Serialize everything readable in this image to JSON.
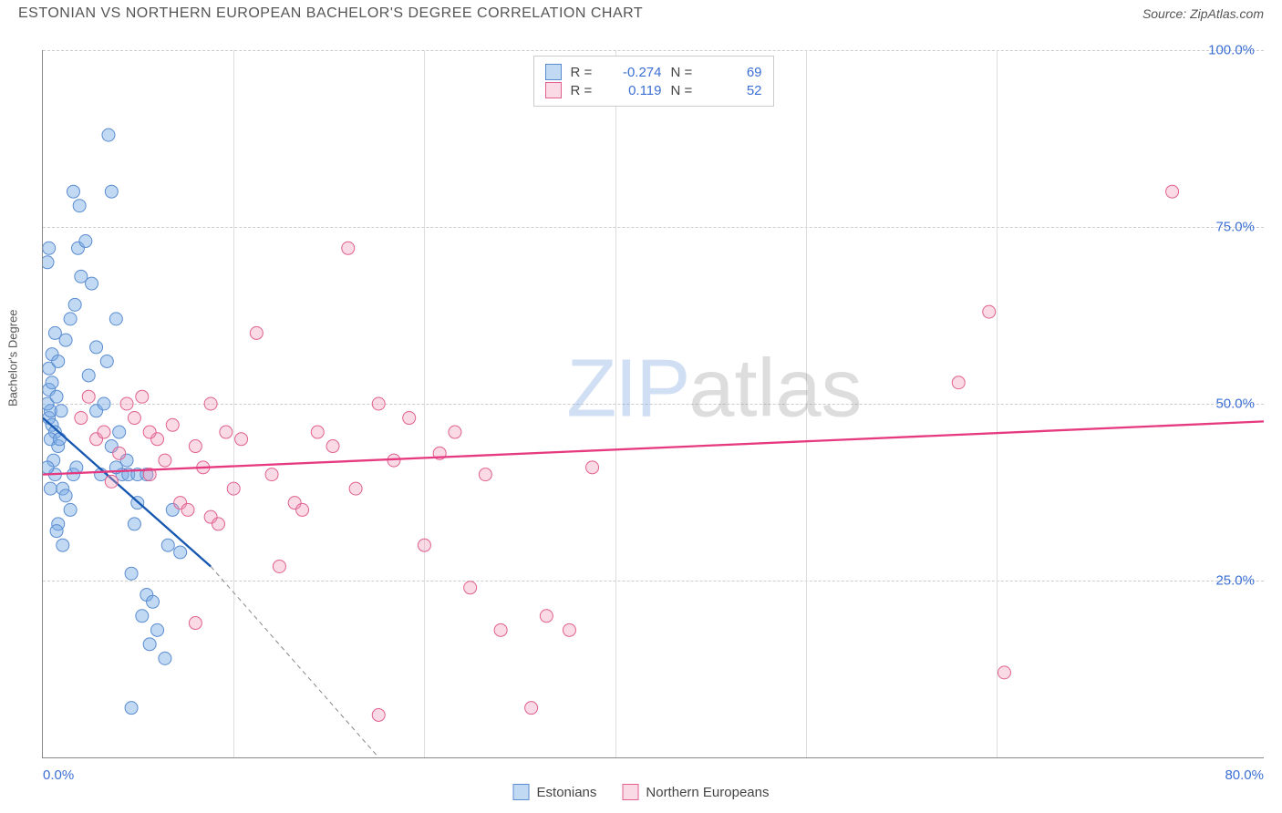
{
  "header": {
    "title": "ESTONIAN VS NORTHERN EUROPEAN BACHELOR'S DEGREE CORRELATION CHART",
    "source": "Source: ZipAtlas.com"
  },
  "watermark": {
    "part1": "ZIP",
    "part2": "atlas"
  },
  "chart": {
    "type": "scatter",
    "background_color": "#ffffff",
    "grid_color": "#cccccc",
    "axis_color": "#888888",
    "ylabel": "Bachelor's Degree",
    "label_fontsize": 13,
    "label_color": "#555555",
    "tick_color": "#3b6fd4",
    "tick_fontsize": 15,
    "xlim": [
      0,
      80
    ],
    "ylim": [
      0,
      100
    ],
    "xticks": [
      {
        "v": 0,
        "label": "0.0%"
      },
      {
        "v": 80,
        "label": "80.0%"
      }
    ],
    "yticks": [
      {
        "v": 25,
        "label": "25.0%"
      },
      {
        "v": 50,
        "label": "50.0%"
      },
      {
        "v": 75,
        "label": "75.0%"
      },
      {
        "v": 100,
        "label": "100.0%"
      }
    ],
    "vgrid": [
      12.5,
      25,
      37.5,
      50,
      62.5
    ],
    "series": [
      {
        "name": "Estonians",
        "marker_fill": "rgba(120,170,230,0.45)",
        "marker_stroke": "#5a8cd0",
        "marker_radius": 7,
        "regression": {
          "solid": {
            "x1": 0,
            "y1": 48,
            "x2": 11,
            "y2": 27,
            "color": "#1557b0",
            "width": 2.3
          },
          "dashed": {
            "x1": 11,
            "y1": 27,
            "x2": 22,
            "y2": 0,
            "color": "#888888",
            "width": 1,
            "dash": "5,4"
          }
        },
        "stats": {
          "R": "-0.274",
          "N": "69"
        },
        "points": [
          [
            0.4,
            48
          ],
          [
            0.5,
            49
          ],
          [
            0.6,
            47
          ],
          [
            0.3,
            50
          ],
          [
            0.8,
            46
          ],
          [
            0.5,
            45
          ],
          [
            0.4,
            52
          ],
          [
            0.9,
            51
          ],
          [
            1.0,
            44
          ],
          [
            0.6,
            53
          ],
          [
            0.7,
            42
          ],
          [
            1.2,
            49
          ],
          [
            0.8,
            40
          ],
          [
            0.5,
            38
          ],
          [
            0.3,
            41
          ],
          [
            1.1,
            45
          ],
          [
            0.4,
            55
          ],
          [
            0.6,
            57
          ],
          [
            1.0,
            56
          ],
          [
            1.3,
            38
          ],
          [
            0.8,
            60
          ],
          [
            1.5,
            59
          ],
          [
            1.8,
            62
          ],
          [
            2.1,
            64
          ],
          [
            2.5,
            68
          ],
          [
            2.3,
            72
          ],
          [
            2.8,
            73
          ],
          [
            3.0,
            54
          ],
          [
            3.2,
            67
          ],
          [
            3.5,
            49
          ],
          [
            4.0,
            50
          ],
          [
            4.2,
            56
          ],
          [
            4.5,
            44
          ],
          [
            5.0,
            46
          ],
          [
            5.2,
            40
          ],
          [
            5.5,
            42
          ],
          [
            5.8,
            26
          ],
          [
            6.0,
            33
          ],
          [
            6.2,
            36
          ],
          [
            6.5,
            20
          ],
          [
            6.8,
            23
          ],
          [
            7.0,
            16
          ],
          [
            7.2,
            22
          ],
          [
            7.5,
            18
          ],
          [
            8.0,
            14
          ],
          [
            8.2,
            30
          ],
          [
            8.5,
            35
          ],
          [
            9.0,
            29
          ],
          [
            2.0,
            40
          ],
          [
            2.2,
            41
          ],
          [
            1.5,
            37
          ],
          [
            1.8,
            35
          ],
          [
            1.0,
            33
          ],
          [
            1.3,
            30
          ],
          [
            0.9,
            32
          ],
          [
            3.8,
            40
          ],
          [
            4.8,
            41
          ],
          [
            3.5,
            58
          ],
          [
            2.0,
            80
          ],
          [
            2.4,
            78
          ],
          [
            4.3,
            88
          ],
          [
            4.5,
            80
          ],
          [
            4.8,
            62
          ],
          [
            0.3,
            70
          ],
          [
            0.4,
            72
          ],
          [
            5.8,
            7
          ],
          [
            5.6,
            40
          ],
          [
            6.2,
            40
          ],
          [
            6.8,
            40
          ]
        ]
      },
      {
        "name": "Northern Europeans",
        "marker_fill": "rgba(240,150,180,0.35)",
        "marker_stroke": "#e06090",
        "marker_radius": 7,
        "regression": {
          "solid": {
            "x1": 0,
            "y1": 40,
            "x2": 80,
            "y2": 47.5,
            "color": "#e63980",
            "width": 2.3
          }
        },
        "stats": {
          "R": "0.119",
          "N": "52"
        },
        "points": [
          [
            2.5,
            48
          ],
          [
            3.0,
            51
          ],
          [
            3.5,
            45
          ],
          [
            4.0,
            46
          ],
          [
            4.5,
            39
          ],
          [
            5.0,
            43
          ],
          [
            5.5,
            50
          ],
          [
            6.0,
            48
          ],
          [
            6.5,
            51
          ],
          [
            7.0,
            40
          ],
          [
            7.5,
            45
          ],
          [
            8.0,
            42
          ],
          [
            8.5,
            47
          ],
          [
            9.0,
            36
          ],
          [
            9.5,
            35
          ],
          [
            10.0,
            44
          ],
          [
            10.5,
            41
          ],
          [
            11.0,
            34
          ],
          [
            11.5,
            33
          ],
          [
            12.0,
            46
          ],
          [
            12.5,
            38
          ],
          [
            13.0,
            45
          ],
          [
            14.0,
            60
          ],
          [
            15.0,
            40
          ],
          [
            15.5,
            27
          ],
          [
            16.5,
            36
          ],
          [
            17.0,
            35
          ],
          [
            18.0,
            46
          ],
          [
            19.0,
            44
          ],
          [
            20.0,
            72
          ],
          [
            20.5,
            38
          ],
          [
            22.0,
            50
          ],
          [
            23.0,
            42
          ],
          [
            24.0,
            48
          ],
          [
            25.0,
            30
          ],
          [
            26.0,
            43
          ],
          [
            27.0,
            46
          ],
          [
            28.0,
            24
          ],
          [
            29.0,
            40
          ],
          [
            30.0,
            18
          ],
          [
            32.0,
            7
          ],
          [
            33.0,
            20
          ],
          [
            34.5,
            18
          ],
          [
            36.0,
            41
          ],
          [
            10.0,
            19
          ],
          [
            22.0,
            6
          ],
          [
            60.0,
            53
          ],
          [
            62.0,
            63
          ],
          [
            63.0,
            12
          ],
          [
            74.0,
            80
          ],
          [
            7.0,
            46
          ],
          [
            11.0,
            50
          ]
        ]
      }
    ],
    "legend_bottom": [
      {
        "label": "Estonians",
        "fill": "rgba(120,170,230,0.45)",
        "stroke": "#5a8cd0"
      },
      {
        "label": "Northern Europeans",
        "fill": "rgba(240,150,180,0.35)",
        "stroke": "#e06090"
      }
    ]
  }
}
